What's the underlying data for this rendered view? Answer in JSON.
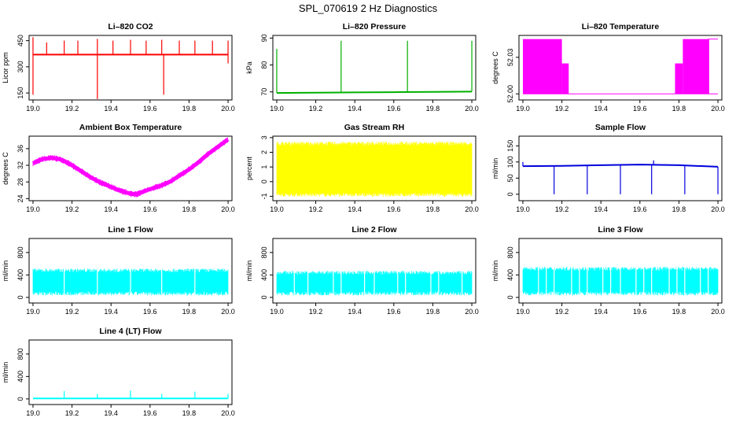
{
  "figure_title": "SPL_070619  2 Hz Diagnostics",
  "chart_data": [
    {
      "id": "co2",
      "type": "line",
      "title": "Li–820 CO2",
      "ylabel": "Licor ppm",
      "color": "#ff0000",
      "xlim": [
        18.98,
        20.02
      ],
      "ylim": [
        110,
        480
      ],
      "xticks": [
        "19.0",
        "19.2",
        "19.4",
        "19.6",
        "19.8",
        "20.0"
      ],
      "yticks": [
        "150",
        "300",
        "450"
      ],
      "series": [
        {
          "x": [
            19.0,
            20.0
          ],
          "y": [
            370,
            370
          ]
        }
      ],
      "spikes_up": [
        [
          19.0,
          470
        ],
        [
          19.07,
          440
        ],
        [
          19.16,
          450
        ],
        [
          19.23,
          450
        ],
        [
          19.33,
          460
        ],
        [
          19.41,
          450
        ],
        [
          19.5,
          455
        ],
        [
          19.58,
          450
        ],
        [
          19.66,
          455
        ],
        [
          19.75,
          450
        ],
        [
          19.83,
          450
        ],
        [
          19.92,
          450
        ],
        [
          20.0,
          450
        ]
      ],
      "spikes_down": [
        [
          19.0,
          140
        ],
        [
          19.33,
          115
        ],
        [
          19.67,
          140
        ],
        [
          20.0,
          320
        ]
      ]
    },
    {
      "id": "pressure",
      "type": "line",
      "title": "Li–820 Pressure",
      "ylabel": "kPa",
      "color": "#00b000",
      "xlim": [
        18.98,
        20.02
      ],
      "ylim": [
        67,
        91
      ],
      "xticks": [
        "19.0",
        "19.2",
        "19.4",
        "19.6",
        "19.8",
        "20.0"
      ],
      "yticks": [
        "70",
        "80",
        "90"
      ],
      "series": [
        {
          "x": [
            19.0,
            19.2,
            19.4,
            19.6,
            19.8,
            20.0
          ],
          "y": [
            69.6,
            69.7,
            69.8,
            69.9,
            70.0,
            70.1
          ]
        }
      ],
      "spikes_up": [
        [
          19.0,
          86
        ],
        [
          19.33,
          89
        ],
        [
          19.67,
          89
        ],
        [
          20.0,
          89
        ]
      ],
      "spikes_down": []
    },
    {
      "id": "temperature",
      "type": "area",
      "title": "Li–820 Temperature",
      "ylabel": "degrees C",
      "color": "#ff00ff",
      "xlim": [
        18.98,
        20.02
      ],
      "ylim": [
        51.995,
        52.048
      ],
      "xticks": [
        "19.0",
        "19.2",
        "19.4",
        "19.6",
        "19.8",
        "20.0"
      ],
      "yticks": [
        "52.00",
        "52.03"
      ],
      "blocks": [
        [
          19.0,
          19.2,
          52.045
        ],
        [
          19.2,
          19.235,
          52.025
        ],
        [
          19.78,
          19.82,
          52.025
        ],
        [
          19.82,
          19.955,
          52.045
        ]
      ],
      "baseline": 52.0
    },
    {
      "id": "ambient",
      "type": "line",
      "title": "Ambient Box Temperature",
      "ylabel": "degrees C",
      "color": "#ff00ff",
      "xlim": [
        18.98,
        20.02
      ],
      "ylim": [
        23.5,
        39
      ],
      "xticks": [
        "19.0",
        "19.2",
        "19.4",
        "19.6",
        "19.8",
        "20.0"
      ],
      "yticks": [
        "24",
        "28",
        "32",
        "36"
      ],
      "series": [
        {
          "x": [
            19.0,
            19.05,
            19.1,
            19.15,
            19.2,
            19.25,
            19.3,
            19.35,
            19.4,
            19.45,
            19.5,
            19.53,
            19.55,
            19.6,
            19.65,
            19.7,
            19.75,
            19.8,
            19.85,
            19.9,
            19.95,
            20.0
          ],
          "y": [
            32.5,
            33.5,
            33.8,
            33.3,
            32.0,
            30.5,
            29.0,
            27.8,
            26.8,
            25.8,
            25.2,
            25.0,
            25.4,
            26.3,
            27.0,
            28.0,
            29.5,
            31.0,
            32.8,
            34.8,
            36.5,
            38.2
          ]
        }
      ],
      "noise": 0.6
    },
    {
      "id": "rh",
      "type": "band",
      "title": "Gas Stream RH",
      "ylabel": "percent",
      "color": "#ffff00",
      "xlim": [
        18.98,
        20.02
      ],
      "ylim": [
        -1.3,
        3.1
      ],
      "xticks": [
        "19.0",
        "19.2",
        "19.4",
        "19.6",
        "19.8",
        "20.0"
      ],
      "yticks": [
        "-1",
        "0",
        "1",
        "2",
        "3"
      ],
      "band": [
        -0.9,
        2.6
      ]
    },
    {
      "id": "sample",
      "type": "line",
      "title": "Sample Flow",
      "ylabel": "ml/min",
      "color": "#0000dd",
      "xlim": [
        18.98,
        20.02
      ],
      "ylim": [
        -20,
        180
      ],
      "xticks": [
        "19.0",
        "19.2",
        "19.4",
        "19.6",
        "19.8",
        "20.0"
      ],
      "yticks": [
        "0",
        "50",
        "100",
        "150"
      ],
      "series": [
        {
          "x": [
            19.0,
            19.2,
            19.4,
            19.6,
            19.8,
            20.0
          ],
          "y": [
            87,
            88,
            90,
            92,
            90,
            85
          ]
        }
      ],
      "spikes_up": [
        [
          19.0,
          100
        ],
        [
          19.67,
          105
        ]
      ],
      "spikes_down": [
        [
          19.16,
          0
        ],
        [
          19.33,
          0
        ],
        [
          19.5,
          0
        ],
        [
          19.66,
          0
        ],
        [
          19.83,
          0
        ],
        [
          20.0,
          0
        ]
      ]
    },
    {
      "id": "line1",
      "type": "band",
      "title": "Line 1 Flow",
      "ylabel": "ml/min",
      "color": "#00ffff",
      "xlim": [
        18.98,
        20.02
      ],
      "ylim": [
        -100,
        1050
      ],
      "xticks": [
        "19.0",
        "19.2",
        "19.4",
        "19.6",
        "19.8",
        "20.0"
      ],
      "yticks": [
        "0",
        "400",
        "800"
      ],
      "band": [
        70,
        480
      ],
      "gaps": [
        19.16,
        19.33,
        19.5,
        19.66,
        19.83
      ]
    },
    {
      "id": "line2",
      "type": "band",
      "title": "Line 2 Flow",
      "ylabel": "ml/min",
      "color": "#00ffff",
      "xlim": [
        18.98,
        20.02
      ],
      "ylim": [
        -100,
        1050
      ],
      "xticks": [
        "19.0",
        "19.2",
        "19.4",
        "19.6",
        "19.8",
        "20.0"
      ],
      "yticks": [
        "0",
        "400",
        "800"
      ],
      "band": [
        70,
        440
      ],
      "gaps": [
        19.09,
        19.16,
        19.29,
        19.33,
        19.45,
        19.5,
        19.62,
        19.66,
        19.79,
        19.83,
        19.95
      ]
    },
    {
      "id": "line3",
      "type": "band",
      "title": "Line 3 Flow",
      "ylabel": "ml/min",
      "color": "#00ffff",
      "xlim": [
        18.98,
        20.02
      ],
      "ylim": [
        -100,
        1050
      ],
      "xticks": [
        "19.0",
        "19.2",
        "19.4",
        "19.6",
        "19.8",
        "20.0"
      ],
      "yticks": [
        "0",
        "400",
        "800"
      ],
      "band": [
        70,
        510
      ],
      "gaps": [
        19.08,
        19.12,
        19.16,
        19.25,
        19.29,
        19.33,
        19.41,
        19.45,
        19.5,
        19.58,
        19.62,
        19.66,
        19.75,
        19.79,
        19.83,
        19.91,
        19.95
      ]
    },
    {
      "id": "line4",
      "type": "line",
      "title": "Line 4 (LT) Flow",
      "ylabel": "ml/min",
      "color": "#00ffff",
      "xlim": [
        18.98,
        20.02
      ],
      "ylim": [
        -100,
        1050
      ],
      "xticks": [
        "19.0",
        "19.2",
        "19.4",
        "19.6",
        "19.8",
        "20.0"
      ],
      "yticks": [
        "0",
        "400",
        "800"
      ],
      "series": [
        {
          "x": [
            19.0,
            20.0
          ],
          "y": [
            10,
            10
          ]
        }
      ],
      "spikes_up": [
        [
          19.16,
          140
        ],
        [
          19.33,
          90
        ],
        [
          19.5,
          150
        ],
        [
          19.66,
          90
        ],
        [
          19.83,
          130
        ],
        [
          20.0,
          90
        ]
      ],
      "spikes_down": []
    }
  ]
}
